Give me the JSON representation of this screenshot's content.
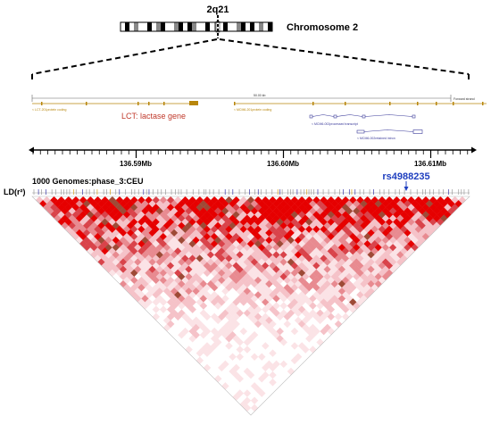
{
  "ideogram": {
    "band_label": "2q21",
    "chromosome_label": "Chromosome 2"
  },
  "track": {
    "scale_label": "50.00 kb",
    "strand_label": "Forward strand",
    "genes": [
      {
        "label": "< LCT-201protein coding",
        "color": "#b8860b"
      },
      {
        "label": "< MCM6-201protein coding",
        "color": "#b8860b"
      },
      {
        "label": "< MCM6-002processed transcript",
        "color": "#3a3a9a"
      },
      {
        "label": "< MCM6-002retained intron",
        "color": "#3a3a9a"
      }
    ],
    "gene_annotation": "LCT: lactase gene",
    "gene_annotation_color": "#c0392b"
  },
  "axis": {
    "ticks": [
      "136.59Mb",
      "136.60Mb",
      "136.61Mb"
    ]
  },
  "ld": {
    "population_label": "1000 Genomes:phase_3:CEU",
    "measure_label": "LD(r²)",
    "highlight_snp": "rs4988235",
    "highlight_color": "#1f3fbf",
    "palette": [
      "#ffffff",
      "#fbe3e6",
      "#f5c2c8",
      "#e88a90",
      "#d9434a",
      "#e60000",
      "#9e4a36"
    ]
  }
}
